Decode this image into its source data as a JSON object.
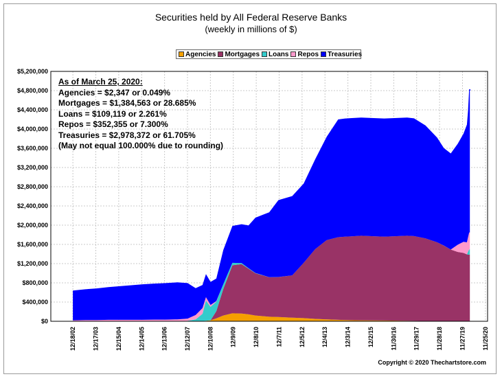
{
  "chart_data": {
    "type": "area",
    "title": "Securities held by All Federal Reserve Banks",
    "subtitle": "(weekly in millions of $)",
    "stacked": true,
    "legend_position": "top-center",
    "grid": true,
    "ylim": [
      0,
      5200000
    ],
    "y_ticks": [
      0,
      400000,
      800000,
      1200000,
      1600000,
      2000000,
      2400000,
      2800000,
      3200000,
      3600000,
      4000000,
      4400000,
      4800000,
      5200000
    ],
    "y_tick_labels": [
      "$0",
      "$400,000",
      "$800,000",
      "$1,200,000",
      "$1,600,000",
      "$2,000,000",
      "$2,400,000",
      "$2,800,000",
      "$3,200,000",
      "$3,600,000",
      "$4,000,000",
      "$4,400,000",
      "$4,800,000",
      "$5,200,000"
    ],
    "x_tick_labels": [
      "12/18/02",
      "12/17/03",
      "12/15/04",
      "12/14/05",
      "12/13/06",
      "12/12/07",
      "12/10/08",
      "12/9/09",
      "12/8/10",
      "12/7/11",
      "12/5/12",
      "12/4/13",
      "12/3/14",
      "12/2/15",
      "11/30/16",
      "11/29/17",
      "11/28/18",
      "11/27/19",
      "11/25/20"
    ],
    "x": [
      2002.96,
      2003.5,
      2004.0,
      2004.5,
      2005.0,
      2005.5,
      2006.0,
      2006.5,
      2007.0,
      2007.5,
      2007.95,
      2008.3,
      2008.6,
      2008.75,
      2008.95,
      2009.2,
      2009.5,
      2009.9,
      2010.3,
      2010.6,
      2010.9,
      2011.5,
      2011.9,
      2012.5,
      2013.0,
      2013.5,
      2014.0,
      2014.5,
      2014.8,
      2015.5,
      2016.5,
      2017.5,
      2017.8,
      2018.3,
      2018.8,
      2019.1,
      2019.4,
      2019.7,
      2019.95,
      2020.1,
      2020.15,
      2020.2,
      2020.23
    ],
    "series": [
      {
        "name": "Agencies",
        "color": "#f5a000",
        "values": [
          0,
          0,
          0,
          0,
          0,
          0,
          0,
          0,
          0,
          0,
          0,
          0,
          5000,
          12000,
          20000,
          60000,
          120000,
          165000,
          160000,
          145000,
          120000,
          95000,
          90000,
          75000,
          65000,
          50000,
          38000,
          30000,
          25000,
          20000,
          15000,
          10000,
          8000,
          5000,
          4000,
          3500,
          3000,
          2500,
          2400,
          2350,
          2347,
          2347,
          2347
        ]
      },
      {
        "name": "Mortgages",
        "color": "#993366",
        "values": [
          0,
          0,
          0,
          0,
          0,
          0,
          0,
          0,
          0,
          0,
          0,
          0,
          0,
          0,
          0,
          150000,
          550000,
          1000000,
          1030000,
          950000,
          880000,
          820000,
          830000,
          880000,
          1150000,
          1450000,
          1650000,
          1720000,
          1735000,
          1760000,
          1745000,
          1770000,
          1765000,
          1720000,
          1640000,
          1570000,
          1490000,
          1440000,
          1420000,
          1390000,
          1385000,
          1384563,
          1384563
        ]
      },
      {
        "name": "Loans",
        "color": "#33cccc",
        "values": [
          0,
          0,
          0,
          0,
          0,
          0,
          0,
          0,
          0,
          0,
          10000,
          40000,
          150000,
          420000,
          280000,
          200000,
          100000,
          50000,
          20000,
          10000,
          5000,
          3000,
          2000,
          1000,
          500,
          300,
          200,
          100,
          100,
          100,
          100,
          100,
          100,
          100,
          100,
          100,
          100,
          100,
          100,
          1000,
          60000,
          109119,
          109119
        ]
      },
      {
        "name": "Repos",
        "color": "#ff99cc",
        "values": [
          20000,
          25000,
          25000,
          30000,
          30000,
          30000,
          30000,
          35000,
          35000,
          40000,
          45000,
          90000,
          120000,
          70000,
          40000,
          10000,
          0,
          0,
          0,
          0,
          0,
          0,
          0,
          0,
          0,
          0,
          0,
          0,
          0,
          0,
          0,
          0,
          0,
          0,
          0,
          0,
          0,
          150000,
          230000,
          250000,
          300000,
          352355,
          352355
        ]
      },
      {
        "name": "Treasuries",
        "color": "#0000ff",
        "values": [
          620000,
          640000,
          660000,
          680000,
          700000,
          720000,
          740000,
          750000,
          760000,
          770000,
          740000,
          560000,
          480000,
          480000,
          480000,
          470000,
          710000,
          770000,
          810000,
          890000,
          1150000,
          1350000,
          1600000,
          1650000,
          1650000,
          1870000,
          2150000,
          2450000,
          2460000,
          2460000,
          2460000,
          2460000,
          2450000,
          2350000,
          2180000,
          2030000,
          2000000,
          2100000,
          2250000,
          2450000,
          2620000,
          2978372,
          2978372
        ]
      }
    ],
    "annotation": {
      "heading": "As of March 25, 2020:",
      "lines": [
        "Agencies = $2,347 or 0.049%",
        "Mortgages = $1,384,563 or 28.685%",
        "Loans = $109,119 or 2.261%",
        "Repos = $352,355 or 7.300%",
        "Treasuries = $2,978,372 or 61.705%",
        "(May not equal 100.000% due to rounding)"
      ]
    },
    "copyright": "Copyright © 2020 Thechartstore.com"
  }
}
